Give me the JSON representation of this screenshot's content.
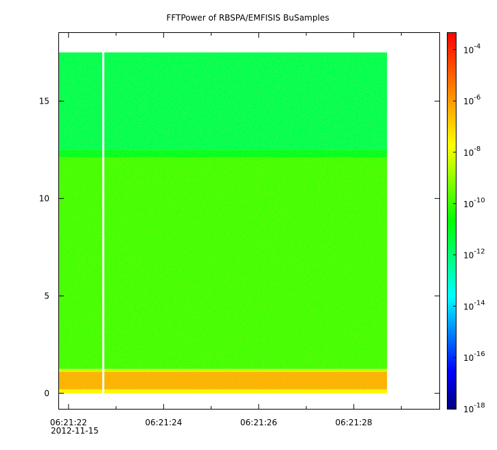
{
  "chart_data": {
    "type": "heatmap",
    "title": "FFTPower of RBSPA/EMFISIS  BuSamples",
    "xlabel": "",
    "ylabel": "",
    "x_ticks": [
      {
        "value": 22,
        "label": "06:21:22"
      },
      {
        "value": 24,
        "label": "06:21:24"
      },
      {
        "value": 26,
        "label": "06:21:26"
      },
      {
        "value": 28,
        "label": "06:21:28"
      }
    ],
    "x_date_label": "2012-11-15",
    "xlim": [
      21.8,
      29.8
    ],
    "xminor_ticks": [
      23,
      25,
      27,
      29
    ],
    "y_ticks": [
      0,
      5,
      10,
      15
    ],
    "ylim": [
      -0.8,
      18.5
    ],
    "data_extent": {
      "x": [
        21.8,
        28.7
      ],
      "y": [
        0,
        17.5
      ]
    },
    "data_gap_x": 22.73,
    "bands": [
      {
        "y": [
          0,
          0.2
        ],
        "log10_power": -7.6
      },
      {
        "y": [
          0.2,
          1.1
        ],
        "log10_power": -6.4
      },
      {
        "y": [
          1.1,
          1.25
        ],
        "log10_power": -8.2
      },
      {
        "y": [
          1.25,
          12.1
        ],
        "log10_power": -9.9
      },
      {
        "y": [
          12.1,
          12.5
        ],
        "log10_power": -11.0
      },
      {
        "y": [
          12.5,
          17.5
        ],
        "log10_power": -11.6
      }
    ],
    "colorbar": {
      "scale": "log",
      "range_exponent": [
        -18,
        -3.35
      ],
      "ticks": [
        {
          "base": "10",
          "exp": "-4",
          "value": -4
        },
        {
          "base": "10",
          "exp": "-6",
          "value": -6
        },
        {
          "base": "10",
          "exp": "-8",
          "value": -8
        },
        {
          "base": "10",
          "exp": "-10",
          "value": -10
        },
        {
          "base": "10",
          "exp": "-12",
          "value": -12
        },
        {
          "base": "10",
          "exp": "-14",
          "value": -14
        },
        {
          "base": "10",
          "exp": "-16",
          "value": -16
        },
        {
          "base": "10",
          "exp": "-18",
          "value": -18
        }
      ],
      "colormap": [
        "#00007f",
        "#0000ff",
        "#007fff",
        "#00ffff",
        "#00ff7f",
        "#00ff00",
        "#7fff00",
        "#ffff00",
        "#ffaa00",
        "#ff5500",
        "#ff0000"
      ]
    }
  }
}
